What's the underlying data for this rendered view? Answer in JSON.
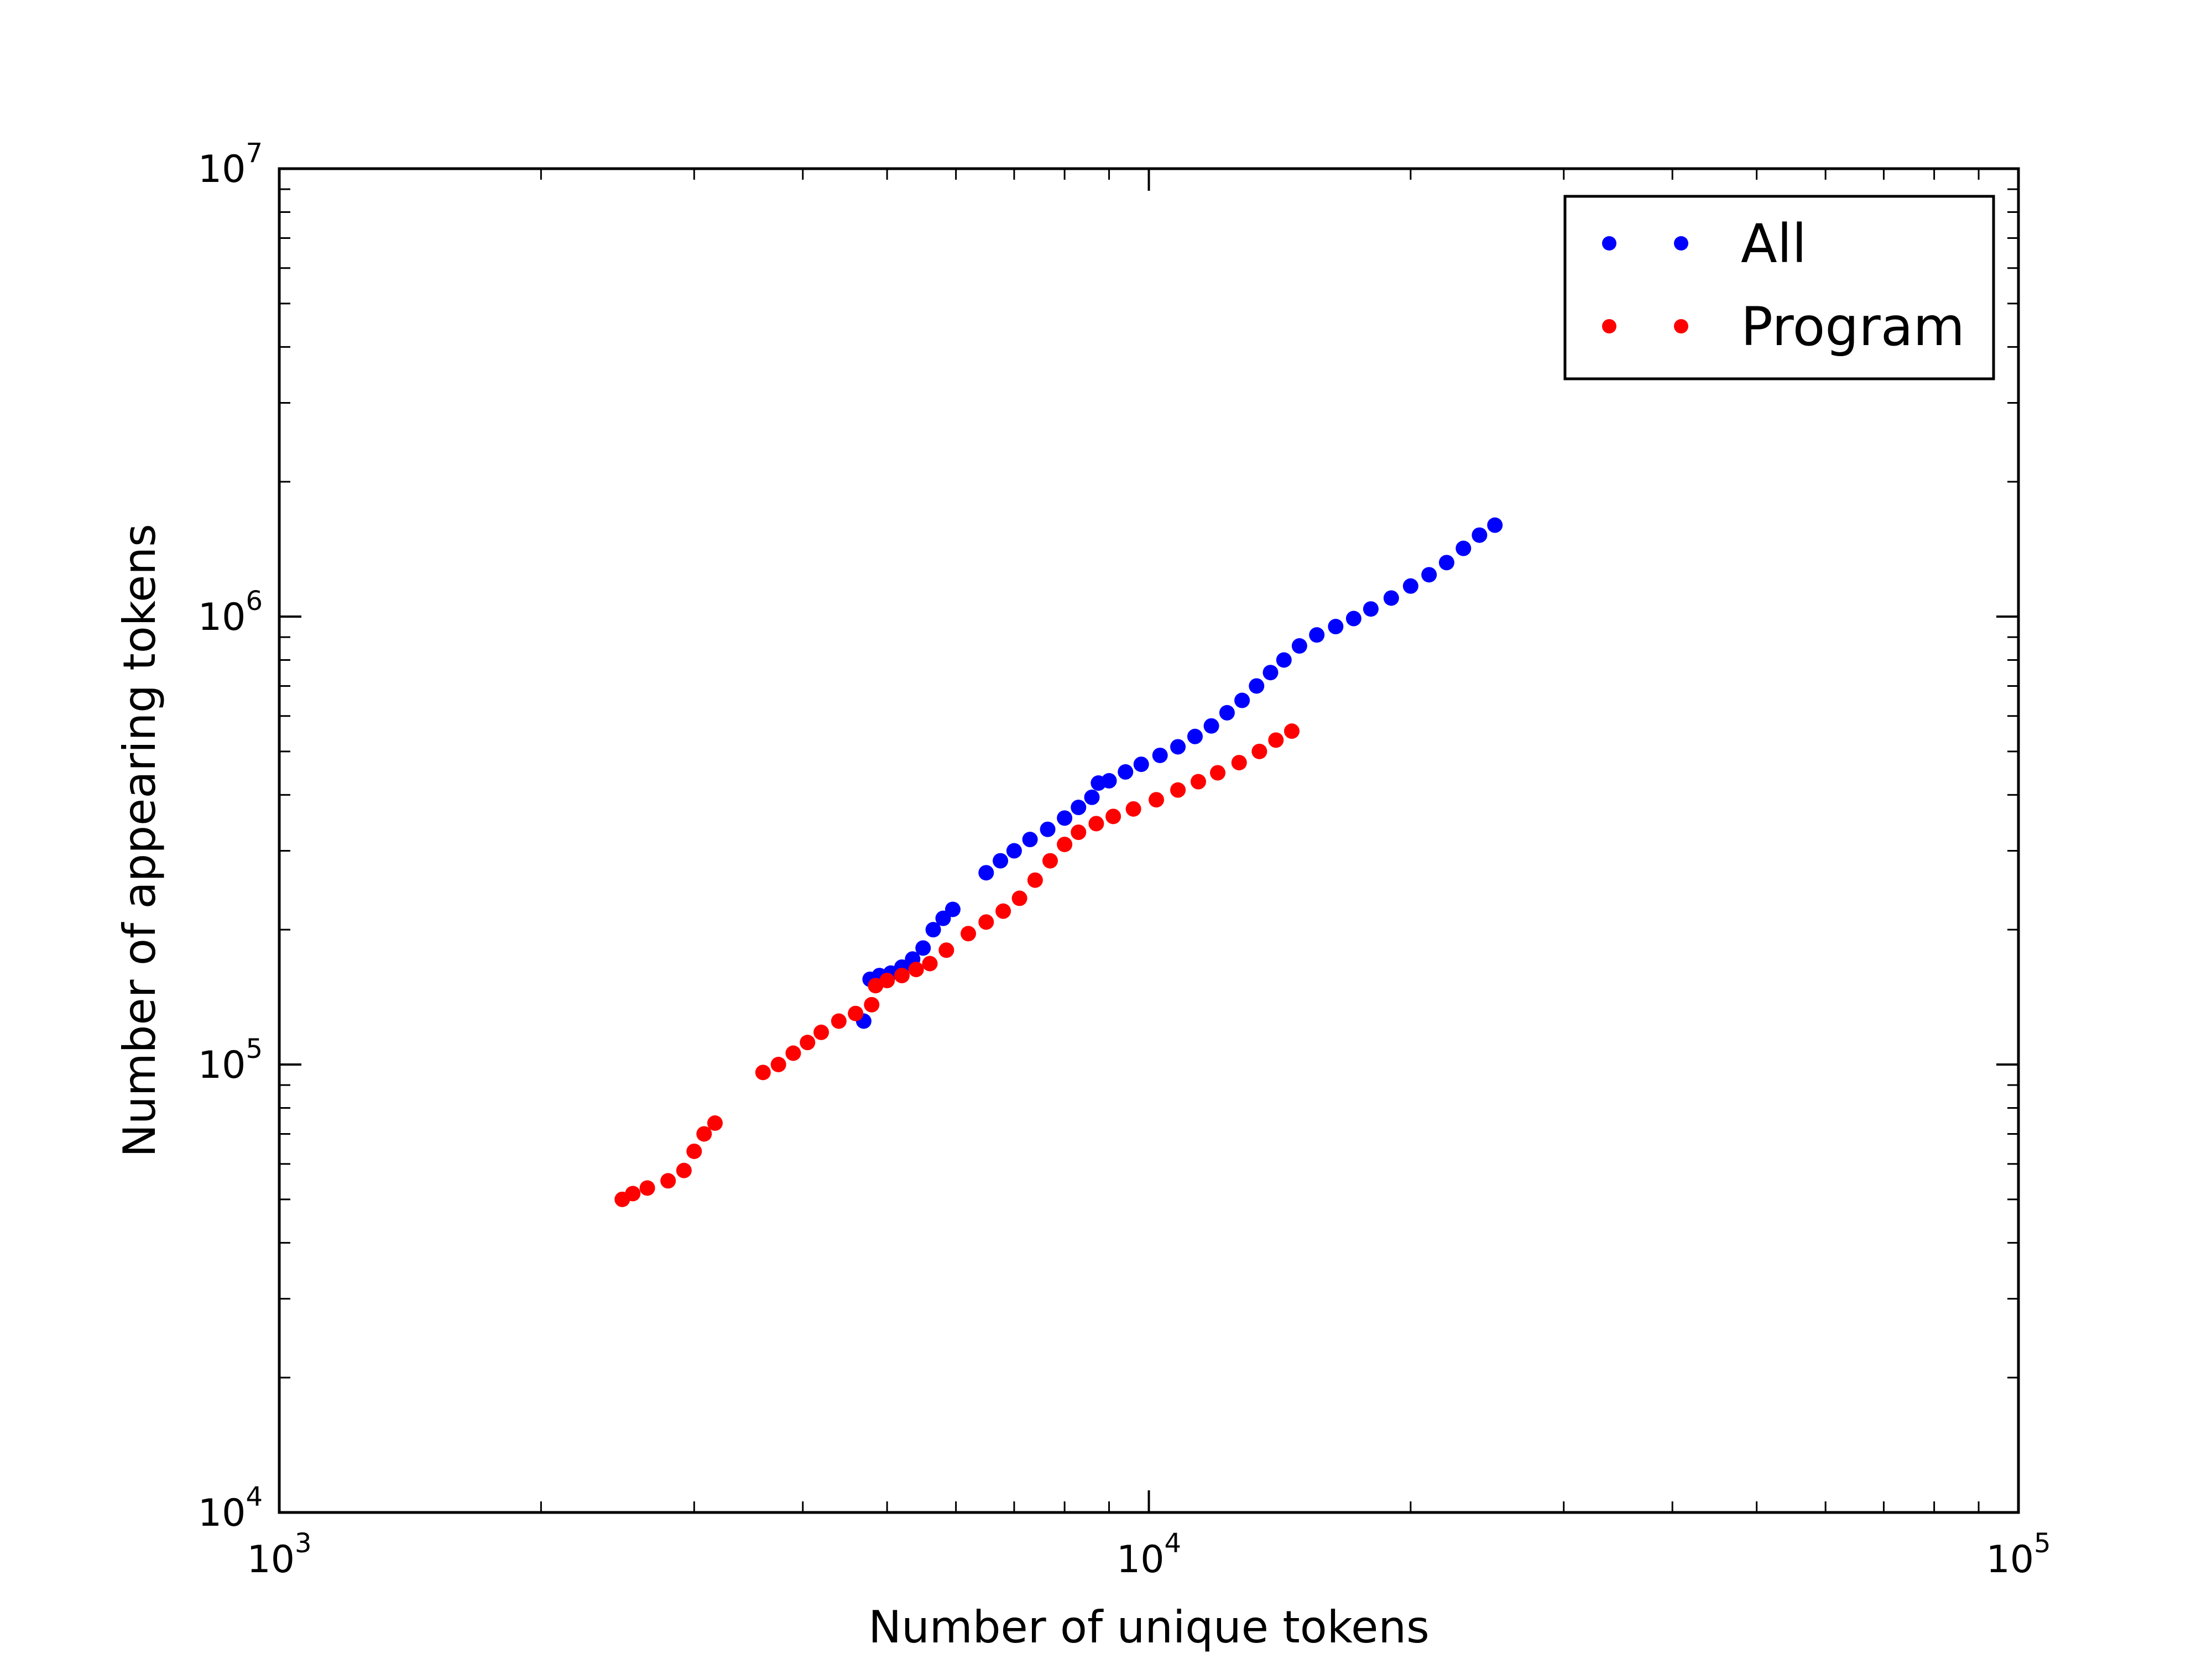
{
  "chart_data": {
    "type": "scatter",
    "xlabel": "Number of unique tokens",
    "ylabel": "Number of appearing tokens",
    "xscale": "log",
    "yscale": "log",
    "xlim": [
      1000,
      100000
    ],
    "ylim": [
      10000,
      10000000
    ],
    "x_ticks": [
      {
        "value": 1000,
        "base": "10",
        "exp": "3"
      },
      {
        "value": 10000,
        "base": "10",
        "exp": "4"
      },
      {
        "value": 100000,
        "base": "10",
        "exp": "5"
      }
    ],
    "y_ticks": [
      {
        "value": 10000,
        "base": "10",
        "exp": "4"
      },
      {
        "value": 100000,
        "base": "10",
        "exp": "5"
      },
      {
        "value": 1000000,
        "base": "10",
        "exp": "6"
      },
      {
        "value": 10000000,
        "base": "10",
        "exp": "7"
      }
    ],
    "grid": false,
    "legend_position": "top-right",
    "series": [
      {
        "name": "All",
        "color": "#0000ff",
        "points": [
          [
            4700,
            125000
          ],
          [
            4780,
            155000
          ],
          [
            4900,
            158000
          ],
          [
            5050,
            160000
          ],
          [
            5200,
            165000
          ],
          [
            5350,
            172000
          ],
          [
            5500,
            182000
          ],
          [
            5650,
            200000
          ],
          [
            5800,
            212000
          ],
          [
            5950,
            222000
          ],
          [
            6500,
            268000
          ],
          [
            6750,
            285000
          ],
          [
            7000,
            300000
          ],
          [
            7300,
            318000
          ],
          [
            7650,
            335000
          ],
          [
            8000,
            355000
          ],
          [
            8300,
            375000
          ],
          [
            8600,
            395000
          ],
          [
            8750,
            425000
          ],
          [
            9000,
            430000
          ],
          [
            9400,
            450000
          ],
          [
            9800,
            468000
          ],
          [
            10300,
            490000
          ],
          [
            10800,
            512000
          ],
          [
            11300,
            540000
          ],
          [
            11800,
            570000
          ],
          [
            12300,
            610000
          ],
          [
            12800,
            650000
          ],
          [
            13300,
            700000
          ],
          [
            13800,
            750000
          ],
          [
            14300,
            800000
          ],
          [
            14900,
            860000
          ],
          [
            15600,
            910000
          ],
          [
            16400,
            950000
          ],
          [
            17200,
            990000
          ],
          [
            18000,
            1040000
          ],
          [
            19000,
            1100000
          ],
          [
            20000,
            1170000
          ],
          [
            21000,
            1240000
          ],
          [
            22000,
            1320000
          ],
          [
            23000,
            1420000
          ],
          [
            24000,
            1520000
          ],
          [
            25000,
            1600000
          ]
        ]
      },
      {
        "name": "Program",
        "color": "#ff0000",
        "points": [
          [
            2480,
            50000
          ],
          [
            2550,
            51500
          ],
          [
            2650,
            53000
          ],
          [
            2800,
            55000
          ],
          [
            2920,
            58000
          ],
          [
            3000,
            64000
          ],
          [
            3080,
            70000
          ],
          [
            3170,
            74000
          ],
          [
            3600,
            96000
          ],
          [
            3750,
            100000
          ],
          [
            3900,
            106000
          ],
          [
            4050,
            112000
          ],
          [
            4200,
            118000
          ],
          [
            4400,
            125000
          ],
          [
            4600,
            130000
          ],
          [
            4800,
            136000
          ],
          [
            4850,
            150000
          ],
          [
            5000,
            154000
          ],
          [
            5200,
            158000
          ],
          [
            5400,
            163000
          ],
          [
            5600,
            168000
          ],
          [
            5850,
            180000
          ],
          [
            6200,
            196000
          ],
          [
            6500,
            208000
          ],
          [
            6800,
            220000
          ],
          [
            7100,
            235000
          ],
          [
            7400,
            258000
          ],
          [
            7700,
            285000
          ],
          [
            8000,
            310000
          ],
          [
            8300,
            330000
          ],
          [
            8700,
            345000
          ],
          [
            9100,
            358000
          ],
          [
            9600,
            372000
          ],
          [
            10200,
            390000
          ],
          [
            10800,
            410000
          ],
          [
            11400,
            428000
          ],
          [
            12000,
            448000
          ],
          [
            12700,
            472000
          ],
          [
            13400,
            500000
          ],
          [
            14000,
            530000
          ],
          [
            14600,
            555000
          ]
        ]
      }
    ]
  }
}
